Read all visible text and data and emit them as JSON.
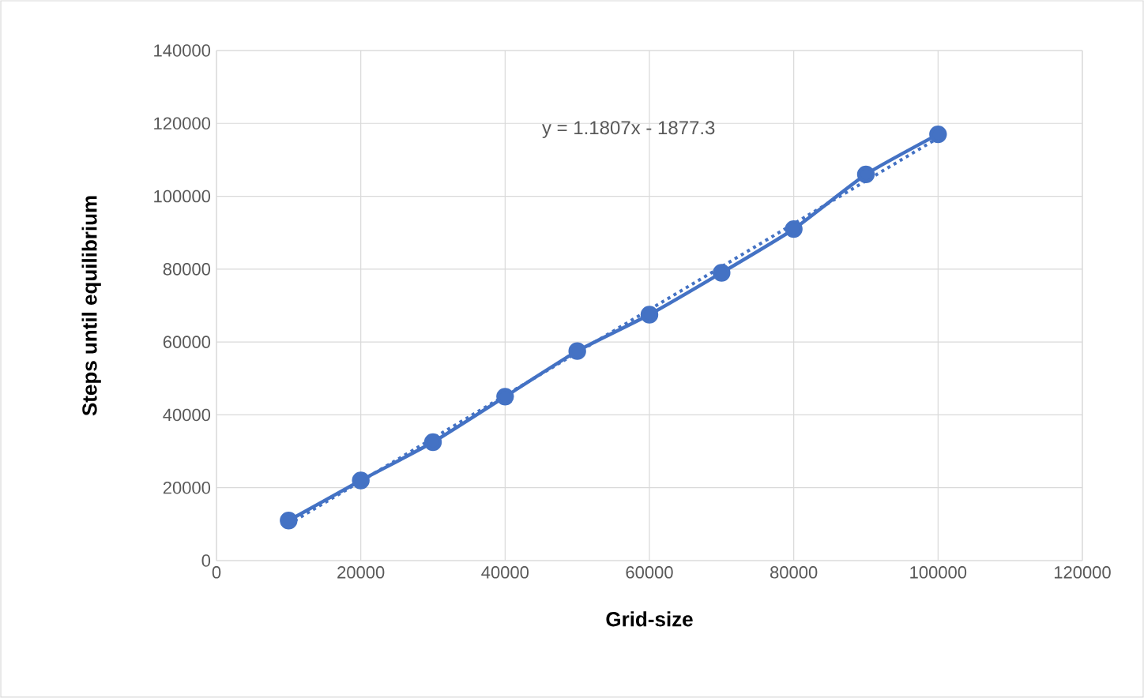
{
  "chart_data": {
    "type": "line",
    "xlabel": "Grid-size",
    "ylabel": "Steps until equilibrium",
    "annotations": [
      "y = 1.1807x - 1877.3"
    ],
    "x": [
      10000,
      20000,
      30000,
      40000,
      50000,
      60000,
      70000,
      80000,
      90000,
      100000
    ],
    "series": [
      {
        "color": "#4472c4",
        "marker": "circle",
        "line_style": "solid",
        "values": [
          11000,
          22000,
          32500,
          45000,
          57500,
          67500,
          79000,
          91000,
          106000,
          117000
        ]
      },
      {
        "color": "#4472c4",
        "marker": "none",
        "line_style": "dotted",
        "x": [
          10000,
          100000
        ],
        "values": [
          10000,
          116000
        ]
      }
    ],
    "xlim": [
      0,
      120000
    ],
    "xticks": [
      0,
      20000,
      40000,
      60000,
      80000,
      100000,
      120000
    ],
    "ylim": [
      0,
      140000
    ],
    "yticks": [
      0,
      20000,
      40000,
      60000,
      80000,
      100000,
      120000,
      140000
    ],
    "grid": true
  }
}
